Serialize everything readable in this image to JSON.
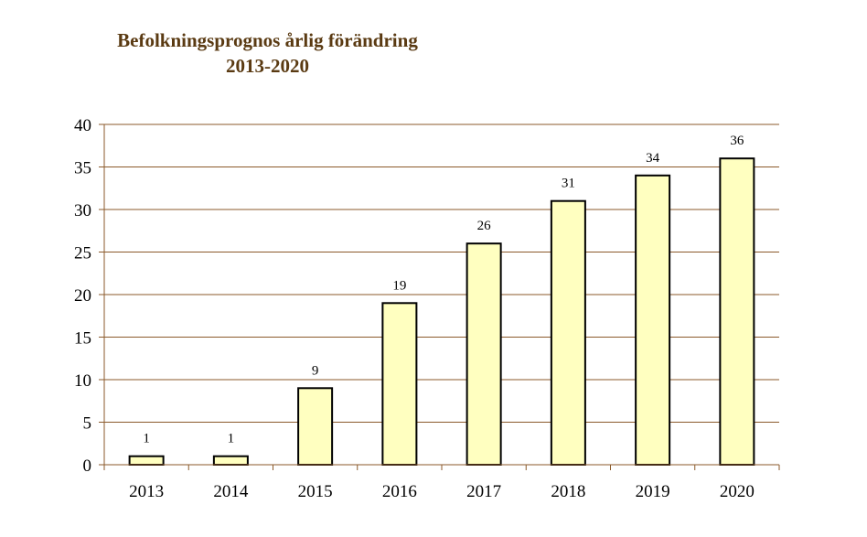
{
  "chart_data": {
    "type": "bar",
    "title": "Befolkningsprognos årlig förändring",
    "subtitle": "2013-2020",
    "categories": [
      "2013",
      "2014",
      "2015",
      "2016",
      "2017",
      "2018",
      "2019",
      "2020"
    ],
    "values": [
      1,
      1,
      9,
      19,
      26,
      31,
      34,
      36
    ],
    "ylim": [
      0,
      40
    ],
    "yticks": [
      0,
      5,
      10,
      15,
      20,
      25,
      30,
      35,
      40
    ],
    "grid": true,
    "legend": "none",
    "colors": {
      "bar_fill": "#ffffc0",
      "bar_stroke": "#000000",
      "grid": "#8b5a2b",
      "title": "#5a3a12"
    }
  }
}
